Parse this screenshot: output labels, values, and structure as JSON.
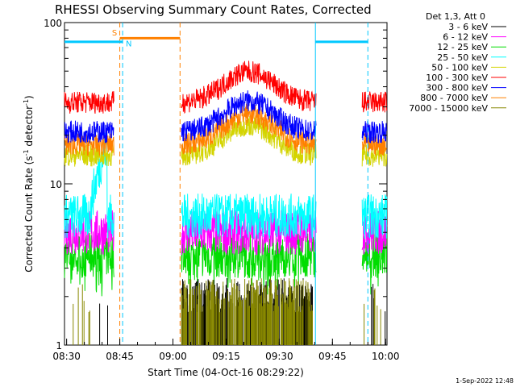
{
  "chart_data": {
    "type": "line",
    "title": "RHESSI Observing Summary Count Rates, Corrected",
    "xlabel": "Start Time (04-Oct-16 08:29:22)",
    "ylabel_parts": [
      "Corrected Count Rate (s",
      "-1",
      " detector",
      "-1",
      ")"
    ],
    "x_ticks": [
      "08:30",
      "08:45",
      "09:00",
      "09:15",
      "09:30",
      "09:45",
      "10:00"
    ],
    "y_ticks": [
      "1",
      "10",
      "100"
    ],
    "yscale": "log",
    "ylim": [
      1,
      100
    ],
    "xlim_minutes": [
      0,
      91
    ],
    "legend_header": "Det 1,3, Att 0",
    "legend_position": "top-right",
    "grid": false,
    "footer_date": "1-Sep-2022 12:48",
    "gaps_minutes": [
      [
        14,
        33
      ],
      [
        71,
        84
      ]
    ],
    "series": [
      {
        "name": "3 - 6 keV",
        "color": "#000000",
        "base": 1.6,
        "sparse": true
      },
      {
        "name": "6 - 12 keV",
        "color": "#ff00ff",
        "base": 5.0
      },
      {
        "name": "12 - 25 keV",
        "color": "#00dd00",
        "base": 3.6
      },
      {
        "name": "25 - 50 keV",
        "color": "#00ffff",
        "base": 6.3
      },
      {
        "name": "50 - 100 keV",
        "color": "#d4d400",
        "base": 15.0
      },
      {
        "name": "100 - 300 keV",
        "color": "#ff0000",
        "base": 32.0
      },
      {
        "name": "300 - 800 keV",
        "color": "#0000ff",
        "base": 21.0
      },
      {
        "name": "800 - 7000 keV",
        "color": "#ff8000",
        "base": 17.5
      },
      {
        "name": "7000 - 15000 keV",
        "color": "#888800",
        "base": 1.6,
        "sparse": true
      }
    ],
    "annotations": [
      {
        "label": "S",
        "color": "#ff8000"
      },
      {
        "label": "N",
        "color": "#00c8ff"
      }
    ]
  }
}
